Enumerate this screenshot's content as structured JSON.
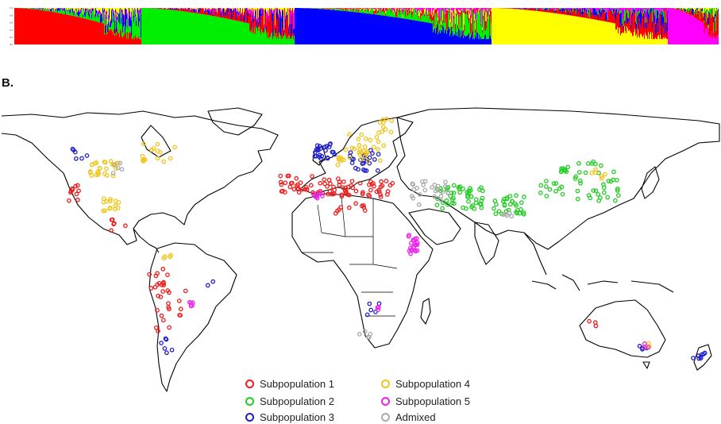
{
  "panel_label": "B.",
  "structure_plot": {
    "y_ticks": [
      "1.0",
      "0.8",
      "0.6",
      "0.4",
      "0.2",
      "0.0"
    ]
  },
  "legend": {
    "items": [
      {
        "key": "sub1",
        "label": "Subpopulation 1",
        "color": "#ee1c1c"
      },
      {
        "key": "sub2",
        "label": "Subpopulation 2",
        "color": "#22cc22"
      },
      {
        "key": "sub3",
        "label": "Subpopulation 3",
        "color": "#1e1ecc"
      },
      {
        "key": "sub4",
        "label": "Subpopulation 4",
        "color": "#f0c419"
      },
      {
        "key": "sub5",
        "label": "Subpopulation 5",
        "color": "#ee22ee"
      },
      {
        "key": "adm",
        "label": "Admixed",
        "color": "#aaaaaa"
      }
    ]
  },
  "colors": {
    "sub1": "#ff0000",
    "sub2": "#00ee00",
    "sub3": "#0000ff",
    "sub4": "#ffff00",
    "sub5": "#ff00ff",
    "coast": "#000000"
  }
}
